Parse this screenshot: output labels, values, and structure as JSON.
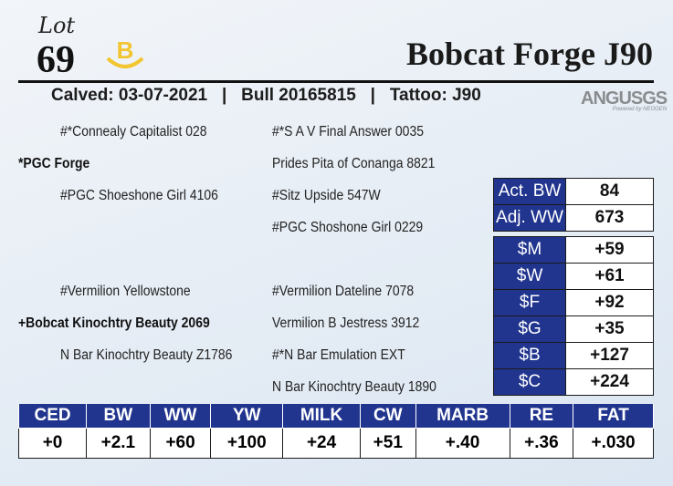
{
  "header": {
    "lot_word": "Lot",
    "lot_number": "69",
    "logo_letter": "B",
    "animal_name": "Bobcat Forge J90",
    "calved": "Calved: 03-07-2021",
    "registration": "Bull 20165815",
    "tattoo": "Tattoo: J90",
    "separator": "|",
    "genomics_logo": "ANGUSGS",
    "genomics_tagline": "Powered by NEOGEN",
    "accent_color": "#21358f",
    "logo_color": "#f2c531"
  },
  "pedigree": {
    "sire_sire_sire": "#*Connealy Capitalist 028",
    "s1": "#*S A V Final Answer 0035",
    "sire": "*PGC Forge",
    "s2": "Prides Pita of Conanga 8821",
    "sire_dam": "#PGC Shoeshone Girl 4106",
    "s3": "#Sitz Upside 547W",
    "s4": "#PGC Shoshone Girl 0229",
    "dam_sire": "#Vermilion Yellowstone",
    "d1": "#Vermilion Dateline 7078",
    "dam": "+Bobcat Kinochtry Beauty 2069",
    "d2": "Vermilion B Jestress 3912",
    "dam_dam": "N Bar Kinochtry Beauty Z1786",
    "d3": "#*N Bar Emulation EXT",
    "d4": "N Bar Kinochtry Beauty 1890"
  },
  "weights": [
    {
      "label": "Act. BW",
      "value": "84"
    },
    {
      "label": "Adj. WW",
      "value": "673"
    }
  ],
  "indexes": [
    {
      "label": "$M",
      "value": "+59"
    },
    {
      "label": "$W",
      "value": "+61"
    },
    {
      "label": "$F",
      "value": "+92"
    },
    {
      "label": "$G",
      "value": "+35"
    },
    {
      "label": "$B",
      "value": "+127"
    },
    {
      "label": "$C",
      "value": "+224"
    }
  ],
  "epds": [
    {
      "label": "CED",
      "value": "+0"
    },
    {
      "label": "BW",
      "value": "+2.1"
    },
    {
      "label": "WW",
      "value": "+60"
    },
    {
      "label": "YW",
      "value": "+100"
    },
    {
      "label": "MILK",
      "value": "+24"
    },
    {
      "label": "CW",
      "value": "+51"
    },
    {
      "label": "MARB",
      "value": "+.40"
    },
    {
      "label": "RE",
      "value": "+.36"
    },
    {
      "label": "FAT",
      "value": "+.030"
    }
  ]
}
